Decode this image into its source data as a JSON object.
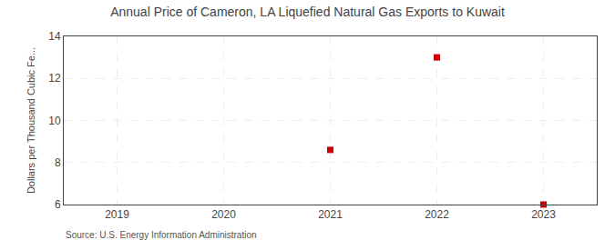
{
  "chart_data": {
    "type": "scatter",
    "title": "Annual Price of Cameron, LA Liquefied Natural Gas Exports to Kuwait",
    "y_label": "Dollars per Thousand Cubic Fe...",
    "annotations": [
      "Source: U.S. Energy Information Administration"
    ],
    "x": [
      2021,
      2022,
      2023
    ],
    "values": [
      8.6,
      13.0,
      6.0
    ],
    "color": "#cc0000",
    "marker": "square",
    "xlim": [
      2018.5,
      2023.5
    ],
    "xticks": [
      2019,
      2020,
      2021,
      2022,
      2023
    ],
    "ylim": [
      6,
      14
    ],
    "yticks": [
      6,
      8,
      10,
      12,
      14
    ],
    "grid": true
  }
}
